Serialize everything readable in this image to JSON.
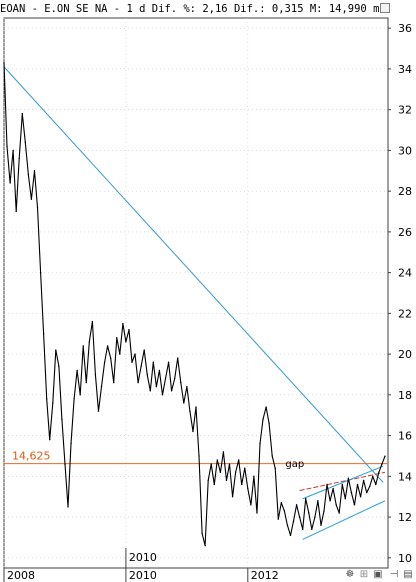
{
  "header": {
    "symbol": "EOAN",
    "name": "E.ON SE NA",
    "interval": "1 d",
    "dif_pct_label": "Dif. %:",
    "dif_pct": "2,16",
    "dif_label": "Dif.:",
    "dif": "0,315",
    "m_label": "M:",
    "m": "14,990",
    "m_unit_label": "m:"
  },
  "colors": {
    "price": "#000000",
    "trend": "#3399cc",
    "channel": "#22a0d8",
    "level": "#e86a2a",
    "resistance": "#d83030",
    "grid": "#c8c8c8",
    "axis": "#404040",
    "level_text": "#e05a18"
  },
  "chart_data": {
    "type": "line",
    "title": "",
    "xlabel": "",
    "ylabel": "",
    "ylim": [
      9.5,
      36.5
    ],
    "xlim": [
      2008.0,
      2014.3
    ],
    "y_ticks": [
      10,
      12,
      14,
      16,
      18,
      20,
      22,
      24,
      26,
      28,
      30,
      32,
      34,
      36
    ],
    "y_tick_labels": [
      "10",
      "12",
      "14",
      "16",
      "18",
      "20",
      "22",
      "24",
      "26",
      "28",
      "30",
      "32",
      "34",
      "36"
    ],
    "x_tick_labels": [
      {
        "x": 2008.0,
        "label": "2008"
      },
      {
        "x": 2010.0,
        "label": "2010"
      },
      {
        "x": 2012.0,
        "label": "2012"
      }
    ],
    "x_marker": {
      "x": 2010.0,
      "label": "2010"
    },
    "grid": true,
    "series": [
      {
        "x": [
          2008.0,
          2008.05,
          2008.1,
          2008.15,
          2008.2,
          2008.25,
          2008.3,
          2008.35,
          2008.4,
          2008.45,
          2008.5,
          2008.55,
          2008.6,
          2008.65,
          2008.7,
          2008.75,
          2008.8,
          2008.85,
          2008.9,
          2008.95,
          2009.0,
          2009.05,
          2009.1,
          2009.15,
          2009.2,
          2009.25,
          2009.3,
          2009.35,
          2009.4,
          2009.45,
          2009.5,
          2009.55,
          2009.6,
          2009.65,
          2009.7,
          2009.75,
          2009.8,
          2009.85,
          2009.9,
          2009.95,
          2010.0,
          2010.05,
          2010.1,
          2010.15,
          2010.2,
          2010.25,
          2010.3,
          2010.35,
          2010.4,
          2010.45,
          2010.5,
          2010.55,
          2010.6,
          2010.65,
          2010.7,
          2010.75,
          2010.8,
          2010.85,
          2010.9,
          2010.95,
          2011.0,
          2011.05,
          2011.1,
          2011.15,
          2011.2,
          2011.25,
          2011.3,
          2011.35,
          2011.4,
          2011.45,
          2011.5,
          2011.55,
          2011.6,
          2011.65,
          2011.7,
          2011.75,
          2011.8,
          2011.85,
          2011.9,
          2011.95,
          2012.0,
          2012.05,
          2012.1,
          2012.15,
          2012.2,
          2012.25,
          2012.3,
          2012.35,
          2012.4,
          2012.45,
          2012.5,
          2012.55,
          2012.6,
          2012.65,
          2012.7,
          2012.75,
          2012.8,
          2012.85,
          2012.9,
          2012.95,
          2013.0,
          2013.05,
          2013.1,
          2013.15,
          2013.2,
          2013.25,
          2013.3,
          2013.35,
          2013.4,
          2013.45,
          2013.5,
          2013.55,
          2013.6,
          2013.65,
          2013.7,
          2013.75,
          2013.8,
          2013.85,
          2013.9,
          2013.95,
          2014.0,
          2014.05,
          2014.1,
          2014.15,
          2014.2,
          2014.25
        ],
        "values": [
          34.3,
          30.2,
          28.4,
          30.0,
          27.0,
          29.6,
          31.8,
          30.4,
          28.8,
          27.6,
          29.0,
          27.2,
          24.0,
          21.0,
          17.8,
          15.8,
          17.6,
          20.2,
          19.4,
          16.8,
          14.6,
          12.5,
          15.6,
          17.8,
          19.2,
          18.0,
          20.4,
          18.6,
          20.6,
          21.6,
          19.0,
          17.2,
          18.4,
          19.6,
          20.4,
          19.8,
          18.6,
          20.8,
          20.0,
          21.5,
          20.6,
          21.2,
          19.6,
          20.0,
          18.6,
          19.4,
          20.2,
          19.0,
          18.2,
          19.6,
          18.4,
          19.2,
          18.0,
          18.8,
          19.6,
          18.2,
          18.8,
          19.8,
          18.6,
          17.6,
          18.4,
          17.2,
          16.2,
          17.4,
          15.0,
          11.2,
          10.6,
          13.8,
          14.6,
          13.6,
          14.8,
          14.2,
          15.2,
          13.8,
          14.6,
          13.0,
          14.2,
          14.8,
          13.6,
          14.4,
          13.4,
          12.6,
          14.0,
          12.2,
          15.6,
          16.8,
          17.4,
          16.6,
          15.0,
          14.4,
          11.9,
          12.7,
          12.3,
          11.6,
          11.1,
          11.8,
          12.6,
          12.0,
          11.4,
          12.9,
          12.2,
          11.4,
          12.0,
          12.8,
          11.6,
          12.3,
          13.6,
          12.8,
          13.4,
          12.6,
          12.2,
          13.6,
          12.9,
          13.9,
          13.2,
          12.6,
          13.6,
          13.0,
          13.8,
          13.2,
          13.5,
          14.0,
          13.6,
          14.2,
          14.6,
          14.99
        ]
      }
    ],
    "lines": [
      {
        "role": "trend",
        "x": [
          2008.0,
          2014.22
        ],
        "y": [
          34.1,
          13.7
        ]
      },
      {
        "role": "resistance",
        "x": [
          2012.85,
          2014.25
        ],
        "y": [
          13.3,
          14.2
        ]
      },
      {
        "role": "channel-upper",
        "x": [
          2012.9,
          2014.22
        ],
        "y": [
          12.9,
          14.5
        ]
      },
      {
        "role": "channel-lower",
        "x": [
          2012.9,
          2014.25
        ],
        "y": [
          10.9,
          12.8
        ]
      },
      {
        "role": "level",
        "x": [
          2008.0,
          2014.3
        ],
        "y": [
          14.625,
          14.625
        ]
      }
    ],
    "level": {
      "value": 14.625,
      "label": "14,625"
    },
    "annotations": [
      {
        "x": 2012.6,
        "y": 14.45,
        "text": "gap"
      }
    ]
  }
}
